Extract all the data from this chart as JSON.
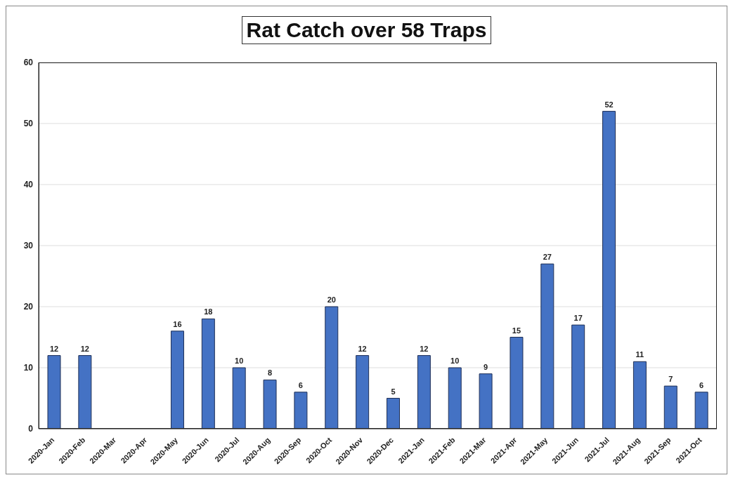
{
  "chart_data": {
    "type": "bar",
    "title": "Rat Catch over 58 Traps",
    "categories": [
      "2020-Jan",
      "2020-Feb",
      "2020-Mar",
      "2020-Apr",
      "2020-May",
      "2020-Jun",
      "2020-Jul",
      "2020-Aug",
      "2020-Sep",
      "2020-Oct",
      "2020-Nov",
      "2020-Dec",
      "2021-Jan",
      "2021-Feb",
      "2021-Mar",
      "2021-Apr",
      "2021-May",
      "2021-Jun",
      "2021-Jul",
      "2021-Aug",
      "2021-Sep",
      "2021-Oct"
    ],
    "values": [
      12,
      12,
      null,
      null,
      16,
      18,
      10,
      8,
      6,
      20,
      12,
      5,
      12,
      10,
      9,
      15,
      27,
      17,
      52,
      11,
      7,
      6
    ],
    "color": "#4472c4",
    "ylim": [
      0,
      60
    ],
    "yticks": [
      0,
      10,
      20,
      30,
      40,
      50,
      60
    ],
    "grid": "y",
    "data_labels": true
  }
}
